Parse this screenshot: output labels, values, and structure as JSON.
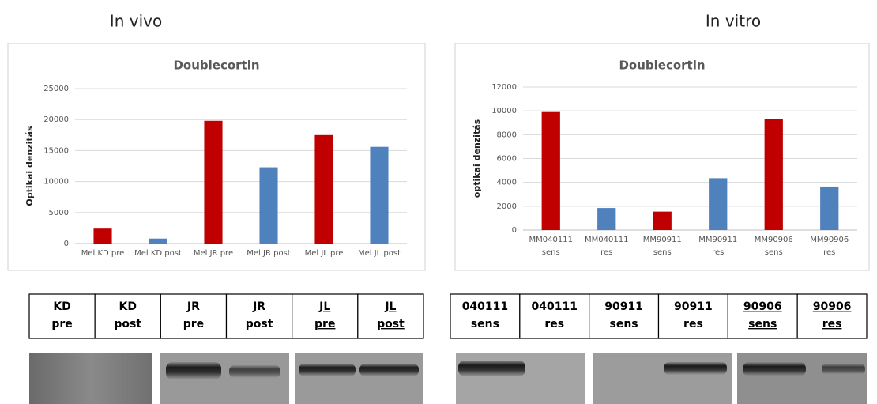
{
  "headings": [
    "In vivo",
    "In vitro"
  ],
  "chart_data": [
    {
      "type": "bar",
      "title": "Doublecortin",
      "y_label": "Optikai denzitás",
      "categories": [
        [
          "Mel KD pre"
        ],
        [
          "Mel KD post"
        ],
        [
          "Mel JR pre"
        ],
        [
          "Mel JR post"
        ],
        [
          "Mel JL pre"
        ],
        [
          "Mel JL post"
        ]
      ],
      "values": [
        2400,
        800,
        19800,
        12300,
        17500,
        15600
      ],
      "colors": [
        "#c00000",
        "#4f81bd",
        "#c00000",
        "#4f81bd",
        "#c00000",
        "#4f81bd"
      ],
      "ylim": [
        0,
        25000
      ],
      "yticks": [
        0,
        5000,
        10000,
        15000,
        20000,
        25000
      ],
      "grid": true
    },
    {
      "type": "bar",
      "title": "Doublecortin",
      "y_label": "optikai denzitás",
      "categories": [
        [
          "MM040111",
          "sens"
        ],
        [
          "MM040111",
          "res"
        ],
        [
          "MM90911",
          "sens"
        ],
        [
          "MM90911",
          "res"
        ],
        [
          "MM90906",
          "sens"
        ],
        [
          "MM90906",
          "res"
        ]
      ],
      "values": [
        9900,
        1850,
        1550,
        4350,
        9300,
        3650
      ],
      "colors": [
        "#c00000",
        "#4f81bd",
        "#c00000",
        "#4f81bd",
        "#c00000",
        "#4f81bd"
      ],
      "ylim": [
        0,
        12000
      ],
      "yticks": [
        0,
        2000,
        4000,
        6000,
        8000,
        10000,
        12000
      ],
      "grid": true
    }
  ],
  "tables": [
    [
      {
        "lines": [
          "KD",
          "pre"
        ]
      },
      {
        "lines": [
          "KD",
          "post"
        ]
      },
      {
        "lines": [
          "JR",
          "pre"
        ]
      },
      {
        "lines": [
          "JR",
          "post"
        ]
      },
      {
        "lines": [
          "JL",
          "pre"
        ],
        "underline": true
      },
      {
        "lines": [
          "JL",
          "post"
        ],
        "underline": true
      }
    ],
    [
      {
        "lines": [
          "040111",
          "sens"
        ]
      },
      {
        "lines": [
          "040111",
          "res"
        ]
      },
      {
        "lines": [
          "90911",
          "sens"
        ]
      },
      {
        "lines": [
          "90911",
          "res"
        ]
      },
      {
        "lines": [
          "90906",
          "sens"
        ],
        "underline": true
      },
      {
        "lines": [
          "90906",
          "res"
        ],
        "underline": true
      }
    ]
  ]
}
